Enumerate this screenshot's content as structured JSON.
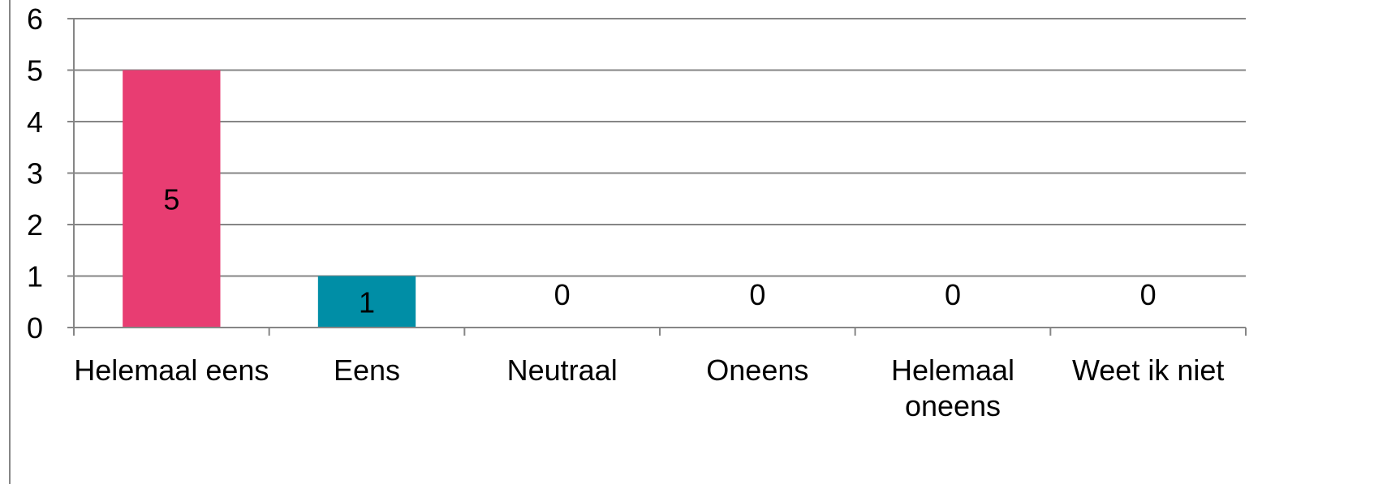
{
  "chart_data": {
    "type": "bar",
    "title": "",
    "xlabel": "",
    "ylabel": "",
    "ylim": [
      0,
      6
    ],
    "yticks": [
      0,
      1,
      2,
      3,
      4,
      5,
      6
    ],
    "grid": true,
    "legend": "none",
    "categories": [
      [
        "Helemaal eens"
      ],
      [
        "Eens"
      ],
      [
        "Neutraal"
      ],
      [
        "Oneens"
      ],
      [
        "Helemaal",
        "oneens"
      ],
      [
        "Weet ik niet"
      ]
    ],
    "values": [
      5,
      1,
      0,
      0,
      0,
      0
    ],
    "data_labels": [
      "5",
      "1",
      "0",
      "0",
      "0",
      "0"
    ],
    "colors": [
      "#e83d72",
      "#008ea6",
      "#7f7f7f",
      "#7f7f7f",
      "#7f7f7f",
      "#7f7f7f"
    ],
    "gridline_color": "#868686",
    "axis_color": "#868686"
  }
}
